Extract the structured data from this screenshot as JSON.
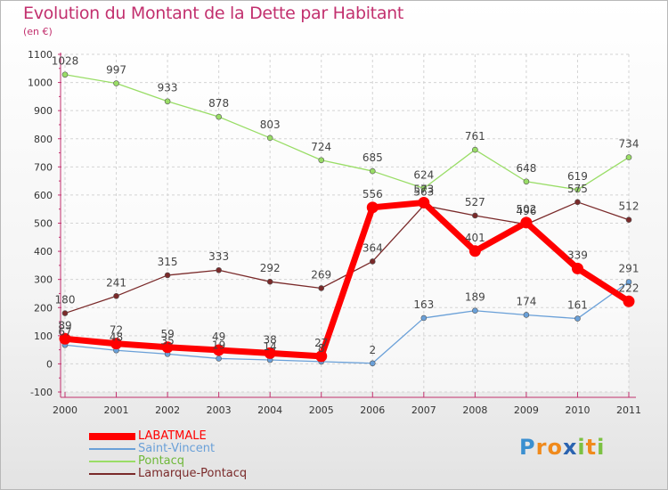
{
  "title": "Evolution du Montant de la Dette par Habitant",
  "subtitle": "(en €)",
  "logo": {
    "text": "Proxiti",
    "letters": [
      "P",
      "r",
      "o",
      "x",
      "i",
      "t",
      "i"
    ],
    "colors": [
      "#3a8fd0",
      "#f08a1c",
      "#f08a1c",
      "#2a63b0",
      "#7cc142",
      "#f08a1c",
      "#7cc142"
    ]
  },
  "chart_data": {
    "type": "line",
    "x": [
      "2000",
      "2001",
      "2002",
      "2003",
      "2004",
      "2005",
      "2006",
      "2007",
      "2008",
      "2009",
      "2010",
      "2011"
    ],
    "ylim": [
      -100,
      1100
    ],
    "yticks": [
      "1100",
      "1000",
      "900",
      "800",
      "700",
      "600",
      "500",
      "400",
      "300",
      "200",
      "100",
      "0",
      "-100"
    ],
    "ytick_values": [
      1100,
      1000,
      900,
      800,
      700,
      600,
      500,
      400,
      300,
      200,
      100,
      0,
      -100
    ],
    "grid": true,
    "legend_position": "bottom-left",
    "series": [
      {
        "name": "LABATMALE",
        "color": "#ff0000",
        "thick": true,
        "values": [
          89,
          72,
          59,
          49,
          38,
          27,
          556,
          573,
          401,
          502,
          339,
          222
        ],
        "labels": [
          "89",
          "72",
          "59",
          "49",
          "38",
          "27",
          "556",
          "573",
          "401",
          "502",
          "339",
          "222"
        ]
      },
      {
        "name": "Saint-Vincent",
        "color": "#6aa0d8",
        "thick": false,
        "values": [
          67,
          48,
          35,
          19,
          14,
          8,
          2,
          163,
          189,
          174,
          161,
          291
        ],
        "labels": [
          "67",
          "48",
          "35",
          "19",
          "14",
          "8",
          "2",
          "163",
          "189",
          "174",
          "161",
          "291"
        ]
      },
      {
        "name": "Pontacq",
        "color": "#99dd66",
        "thick": false,
        "values": [
          1028,
          997,
          933,
          878,
          803,
          724,
          685,
          624,
          761,
          648,
          619,
          734
        ],
        "labels": [
          "1028",
          "997",
          "933",
          "878",
          "803",
          "724",
          "685",
          "624",
          "761",
          "648",
          "619",
          "734"
        ]
      },
      {
        "name": "Lamarque-Pontacq",
        "color": "#7a2a2a",
        "thick": false,
        "values": [
          180,
          241,
          315,
          333,
          292,
          269,
          364,
          563,
          527,
          496,
          575,
          512
        ],
        "labels": [
          "180",
          "241",
          "315",
          "333",
          "292",
          "269",
          "364",
          "563",
          "527",
          "496",
          "575",
          "512"
        ]
      }
    ]
  }
}
